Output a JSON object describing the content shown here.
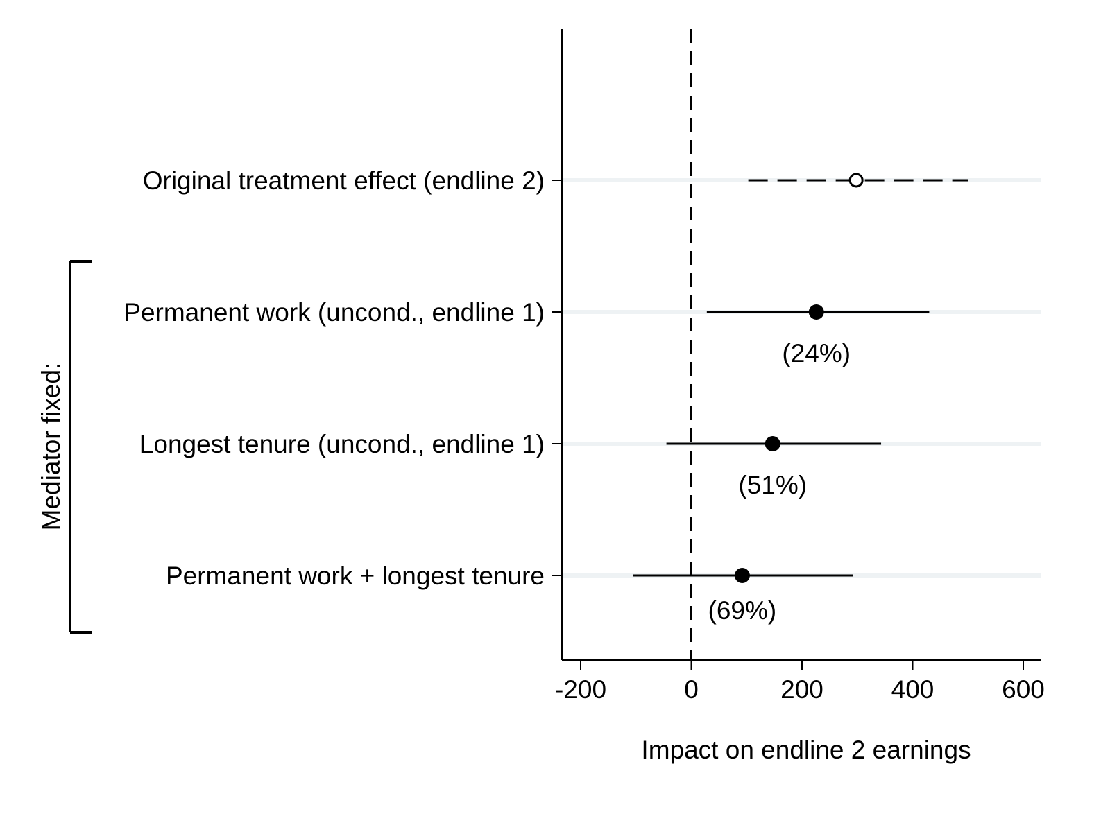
{
  "chart_data": {
    "type": "coefficient-plot",
    "xlabel": "Impact on endline 2 earnings",
    "xlim": [
      -240,
      630
    ],
    "xticks": [
      -200,
      0,
      200,
      400,
      600
    ],
    "xtick_labels": [
      "-200",
      "0",
      "200",
      "400",
      "600"
    ],
    "reference_line": {
      "x": 0,
      "style": "dashed"
    },
    "group_bracket": {
      "label": "Mediator fixed:",
      "rows": [
        1,
        2,
        3
      ]
    },
    "rows": [
      {
        "label": "Original treatment effect (endline 2)",
        "estimate": 298,
        "ci": [
          103,
          500
        ],
        "marker": "hollow",
        "ci_style": "dashed",
        "annotation": ""
      },
      {
        "label": "Permanent work (uncond., endline 1)",
        "estimate": 226,
        "ci": [
          28,
          430
        ],
        "marker": "filled",
        "ci_style": "solid",
        "annotation": "(24%)"
      },
      {
        "label": "Longest tenure (uncond., endline 1)",
        "estimate": 147,
        "ci": [
          -45,
          343
        ],
        "marker": "filled",
        "ci_style": "solid",
        "annotation": "(51%)"
      },
      {
        "label": "Permanent work + longest tenure",
        "estimate": 92,
        "ci": [
          -105,
          292
        ],
        "marker": "filled",
        "ci_style": "solid",
        "annotation": "(69%)"
      }
    ],
    "colors": {
      "row_band": "#eef2f4",
      "line": "#000000"
    }
  }
}
